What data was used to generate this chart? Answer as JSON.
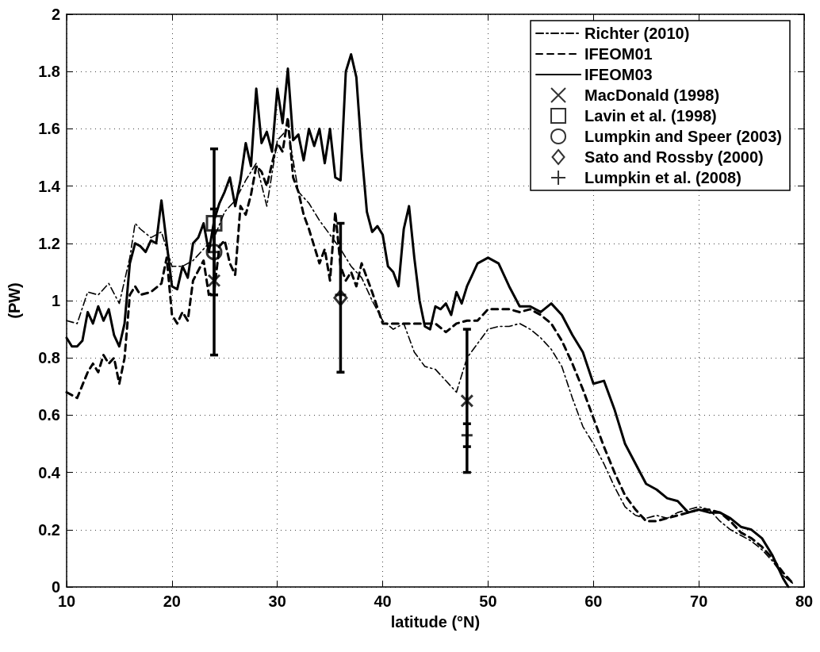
{
  "chart_data": {
    "type": "line",
    "xlabel": "latitude (°N)",
    "ylabel": "(PW)",
    "xlim": [
      10,
      80
    ],
    "xticks": [
      10,
      20,
      30,
      40,
      50,
      60,
      70,
      80
    ],
    "ylim": [
      0,
      2
    ],
    "yticks": [
      0,
      0.2,
      0.4,
      0.6,
      0.8,
      1,
      1.2,
      1.4,
      1.6,
      1.8,
      2
    ],
    "grid": true,
    "legend": "top right",
    "series": [
      {
        "name": "Richter (2010)",
        "line_style": "dashdot",
        "marker": "none",
        "color": "#000000",
        "x": [
          10,
          11,
          12,
          13,
          14,
          15,
          16,
          16.5,
          17,
          18,
          19,
          20,
          21,
          22,
          23,
          24,
          25,
          26,
          27,
          28,
          29,
          30,
          31,
          32,
          33,
          34,
          35,
          36,
          37,
          38,
          39,
          40,
          41,
          42,
          43,
          44,
          45,
          46,
          47,
          48,
          49,
          50,
          51,
          52,
          53,
          54,
          55,
          56,
          57,
          58,
          59,
          60,
          61,
          62,
          63,
          64,
          65,
          66,
          67,
          68,
          69,
          70,
          71,
          72,
          73,
          74,
          75,
          76,
          77,
          78,
          79
        ],
        "values": [
          0.93,
          0.92,
          1.03,
          1.02,
          1.06,
          0.99,
          1.15,
          1.27,
          1.25,
          1.22,
          1.24,
          1.12,
          1.12,
          1.14,
          1.18,
          1.22,
          1.31,
          1.35,
          1.42,
          1.48,
          1.33,
          1.56,
          1.6,
          1.38,
          1.34,
          1.28,
          1.23,
          1.18,
          1.12,
          1.08,
          1.0,
          0.93,
          0.9,
          0.92,
          0.82,
          0.77,
          0.76,
          0.72,
          0.68,
          0.8,
          0.85,
          0.9,
          0.91,
          0.91,
          0.92,
          0.9,
          0.87,
          0.83,
          0.77,
          0.66,
          0.56,
          0.5,
          0.43,
          0.35,
          0.28,
          0.25,
          0.24,
          0.25,
          0.24,
          0.26,
          0.27,
          0.28,
          0.27,
          0.23,
          0.2,
          0.18,
          0.16,
          0.13,
          0.09,
          0.04,
          0.01
        ]
      },
      {
        "name": "IFEOM01",
        "line_style": "dashed",
        "marker": "none",
        "color": "#000000",
        "x": [
          10,
          11,
          12,
          12.5,
          13,
          13.5,
          14,
          14.5,
          15,
          15.5,
          16,
          16.5,
          17,
          18,
          19,
          19.5,
          20,
          20.5,
          21,
          21.5,
          22,
          23,
          23.5,
          24,
          24.5,
          25,
          25.5,
          26,
          26.5,
          27,
          27.5,
          28,
          28.5,
          29,
          29.5,
          30,
          30.5,
          31,
          31.5,
          32,
          32.5,
          33,
          34,
          34.5,
          35,
          35.5,
          36,
          36.5,
          37,
          37.5,
          38,
          39,
          40,
          41,
          42,
          43,
          44,
          45,
          46,
          47,
          48,
          49,
          50,
          51,
          52,
          53,
          54,
          55,
          56,
          57,
          58,
          59,
          60,
          61,
          62,
          63,
          64,
          65,
          66,
          67,
          68,
          69,
          70,
          71,
          72,
          73,
          74,
          75,
          76,
          77,
          78,
          79
        ],
        "values": [
          0.68,
          0.66,
          0.75,
          0.78,
          0.75,
          0.81,
          0.78,
          0.8,
          0.71,
          0.8,
          1.02,
          1.05,
          1.02,
          1.03,
          1.06,
          1.15,
          0.95,
          0.92,
          0.96,
          0.93,
          1.07,
          1.14,
          1.02,
          1.03,
          1.19,
          1.21,
          1.13,
          1.09,
          1.33,
          1.3,
          1.37,
          1.47,
          1.45,
          1.4,
          1.48,
          1.55,
          1.52,
          1.64,
          1.43,
          1.38,
          1.3,
          1.25,
          1.13,
          1.18,
          1.07,
          1.31,
          1.12,
          1.07,
          1.1,
          1.05,
          1.13,
          1.03,
          0.92,
          0.92,
          0.92,
          0.92,
          0.92,
          0.92,
          0.89,
          0.92,
          0.93,
          0.93,
          0.97,
          0.97,
          0.97,
          0.96,
          0.97,
          0.95,
          0.92,
          0.86,
          0.78,
          0.69,
          0.59,
          0.49,
          0.4,
          0.32,
          0.27,
          0.23,
          0.23,
          0.24,
          0.25,
          0.26,
          0.27,
          0.27,
          0.26,
          0.23,
          0.19,
          0.17,
          0.14,
          0.1,
          0.05,
          0.01
        ]
      },
      {
        "name": "IFEOM03",
        "line_style": "solid",
        "marker": "none",
        "color": "#000000",
        "x": [
          10,
          10.5,
          11,
          11.5,
          12,
          12.5,
          13,
          13.5,
          14,
          14.5,
          15,
          15.5,
          16,
          16.5,
          17,
          17.5,
          18,
          18.5,
          19,
          19.5,
          20,
          20.5,
          21,
          21.5,
          22,
          22.5,
          23,
          23.5,
          24,
          24.5,
          25,
          25.5,
          26,
          26.5,
          27,
          27.5,
          28,
          28.5,
          29,
          29.5,
          30,
          30.5,
          31,
          31.5,
          32,
          32.5,
          33,
          33.5,
          34,
          34.5,
          35,
          35.5,
          36,
          36.5,
          37,
          37.5,
          38,
          38.5,
          39,
          39.5,
          40,
          40.5,
          41,
          41.5,
          42,
          42.5,
          43,
          43.5,
          44,
          44.5,
          45,
          45.5,
          46,
          46.5,
          47,
          47.5,
          48,
          48.5,
          49,
          50,
          51,
          52,
          53,
          54,
          55,
          56,
          57,
          58,
          59,
          60,
          61,
          62,
          63,
          64,
          65,
          66,
          67,
          68,
          69,
          70,
          71,
          72,
          73,
          74,
          75,
          76,
          77,
          78,
          78.5
        ],
        "values": [
          0.87,
          0.84,
          0.84,
          0.86,
          0.96,
          0.92,
          0.98,
          0.93,
          0.97,
          0.88,
          0.84,
          0.92,
          1.13,
          1.2,
          1.19,
          1.17,
          1.21,
          1.2,
          1.35,
          1.2,
          1.05,
          1.04,
          1.12,
          1.08,
          1.2,
          1.22,
          1.27,
          1.17,
          1.28,
          1.34,
          1.38,
          1.43,
          1.33,
          1.42,
          1.55,
          1.47,
          1.74,
          1.55,
          1.59,
          1.52,
          1.74,
          1.62,
          1.81,
          1.56,
          1.58,
          1.49,
          1.6,
          1.54,
          1.6,
          1.48,
          1.6,
          1.43,
          1.42,
          1.8,
          1.86,
          1.78,
          1.52,
          1.31,
          1.24,
          1.26,
          1.23,
          1.12,
          1.1,
          1.05,
          1.25,
          1.33,
          1.15,
          1.0,
          0.91,
          0.9,
          0.98,
          0.97,
          0.99,
          0.95,
          1.03,
          0.99,
          1.05,
          1.09,
          1.13,
          1.15,
          1.13,
          1.05,
          0.98,
          0.98,
          0.96,
          0.99,
          0.95,
          0.88,
          0.82,
          0.71,
          0.72,
          0.62,
          0.5,
          0.43,
          0.36,
          0.34,
          0.31,
          0.3,
          0.26,
          0.27,
          0.26,
          0.26,
          0.24,
          0.21,
          0.2,
          0.17,
          0.11,
          0.03,
          0.0
        ]
      },
      {
        "name": "MacDonald (1998)",
        "type": "scatter",
        "marker": "x",
        "color": "#000000",
        "x": [
          24,
          48
        ],
        "values": [
          1.07,
          0.65
        ],
        "errors": [
          null,
          0.25
        ]
      },
      {
        "name": "Lavin et al. (1998)",
        "type": "scatter",
        "marker": "square",
        "color": "#000000",
        "x": [
          24
        ],
        "values": [
          1.27
        ]
      },
      {
        "name": "Lumpkin and Speer (2003)",
        "type": "scatter",
        "marker": "circle",
        "color": "#000000",
        "x": [
          24
        ],
        "values": [
          1.17
        ],
        "errors": [
          0.36
        ]
      },
      {
        "name": "Sato and Rossby (2000)",
        "type": "scatter",
        "marker": "diamond",
        "color": "#000000",
        "x": [
          36
        ],
        "values": [
          1.01
        ],
        "errors": [
          0.26
        ]
      },
      {
        "name": "Lumpkin et al. (2008)",
        "type": "scatter",
        "marker": "plus",
        "color": "#000000",
        "x": [
          24,
          36,
          48
        ],
        "values": [
          1.17,
          1.02,
          0.53
        ],
        "errors": [
          0.15,
          null,
          0.04
        ]
      }
    ]
  }
}
